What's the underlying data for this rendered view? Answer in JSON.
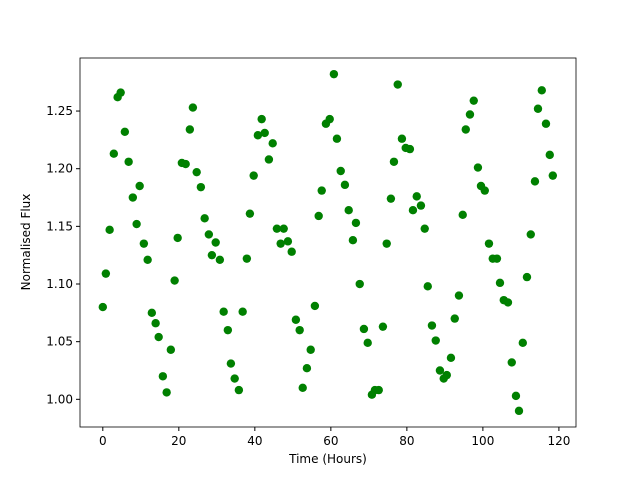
{
  "chart_data": {
    "type": "scatter",
    "xlabel": "Time (Hours)",
    "ylabel": "Normalised Flux",
    "color": "#008000",
    "x": [
      0,
      0.8,
      1.8,
      2.9,
      3.9,
      4.7,
      5.8,
      6.8,
      7.9,
      8.9,
      9.7,
      10.8,
      11.8,
      12.9,
      13.9,
      14.7,
      15.8,
      16.8,
      17.9,
      18.9,
      19.7,
      20.8,
      21.8,
      22.9,
      23.7,
      24.7,
      25.8,
      26.8,
      27.9,
      28.7,
      29.7,
      30.8,
      31.8,
      32.9,
      33.7,
      34.7,
      35.8,
      36.8,
      37.9,
      38.7,
      39.7,
      40.8,
      41.8,
      42.6,
      43.7,
      44.7,
      45.8,
      46.8,
      47.6,
      48.7,
      49.7,
      50.8,
      51.8,
      52.6,
      53.7,
      54.7,
      55.8,
      56.8,
      57.6,
      58.7,
      59.7,
      60.8,
      61.6,
      62.6,
      63.7,
      64.7,
      65.8,
      66.6,
      67.6,
      68.7,
      69.7,
      70.8,
      71.6,
      72.6,
      73.7,
      74.7,
      75.8,
      76.6,
      77.6,
      78.7,
      79.7,
      80.8,
      81.6,
      82.6,
      83.7,
      84.7,
      85.5,
      86.6,
      87.6,
      88.7,
      89.7,
      90.5,
      91.6,
      92.6,
      93.7,
      94.7,
      95.5,
      96.6,
      97.6,
      98.7,
      99.5,
      100.5,
      101.6,
      102.6,
      103.7,
      104.5,
      105.5,
      106.6,
      107.6,
      108.7,
      109.5,
      110.5,
      111.6,
      112.6,
      113.7,
      114.5,
      115.5,
      116.6,
      117.6,
      118.4
    ],
    "values": [
      1.08,
      1.109,
      1.147,
      1.213,
      1.262,
      1.266,
      1.232,
      1.206,
      1.175,
      1.152,
      1.185,
      1.135,
      1.121,
      1.075,
      1.066,
      1.054,
      1.02,
      1.006,
      1.043,
      1.103,
      1.14,
      1.205,
      1.204,
      1.234,
      1.253,
      1.197,
      1.184,
      1.157,
      1.143,
      1.125,
      1.136,
      1.121,
      1.076,
      1.06,
      1.031,
      1.018,
      1.008,
      1.076,
      1.122,
      1.161,
      1.194,
      1.229,
      1.243,
      1.231,
      1.208,
      1.222,
      1.148,
      1.135,
      1.148,
      1.137,
      1.128,
      1.069,
      1.06,
      1.01,
      1.027,
      1.043,
      1.081,
      1.159,
      1.181,
      1.239,
      1.243,
      1.282,
      1.226,
      1.198,
      1.186,
      1.164,
      1.138,
      1.153,
      1.1,
      1.061,
      1.049,
      1.004,
      1.008,
      1.008,
      1.063,
      1.135,
      1.174,
      1.206,
      1.273,
      1.226,
      1.218,
      1.217,
      1.164,
      1.176,
      1.168,
      1.148,
      1.098,
      1.064,
      1.051,
      1.025,
      1.018,
      1.021,
      1.036,
      1.07,
      1.09,
      1.16,
      1.234,
      1.247,
      1.259,
      1.201,
      1.185,
      1.181,
      1.135,
      1.122,
      1.122,
      1.101,
      1.086,
      1.084,
      1.032,
      1.003,
      0.99,
      1.049,
      1.106,
      1.143,
      1.189,
      1.252,
      1.268,
      1.239,
      1.212,
      1.194
    ],
    "xlim": [
      -6,
      124.5
    ],
    "ylim": [
      0.976,
      1.296
    ],
    "xticks": [
      0,
      20,
      40,
      60,
      80,
      100,
      120
    ],
    "yticks": [
      {
        "value": 1.0,
        "label": "1.00"
      },
      1.05,
      {
        "value": 1.1,
        "label": "1.10"
      },
      1.15,
      {
        "value": 1.2,
        "label": "1.20"
      },
      1.25
    ]
  }
}
